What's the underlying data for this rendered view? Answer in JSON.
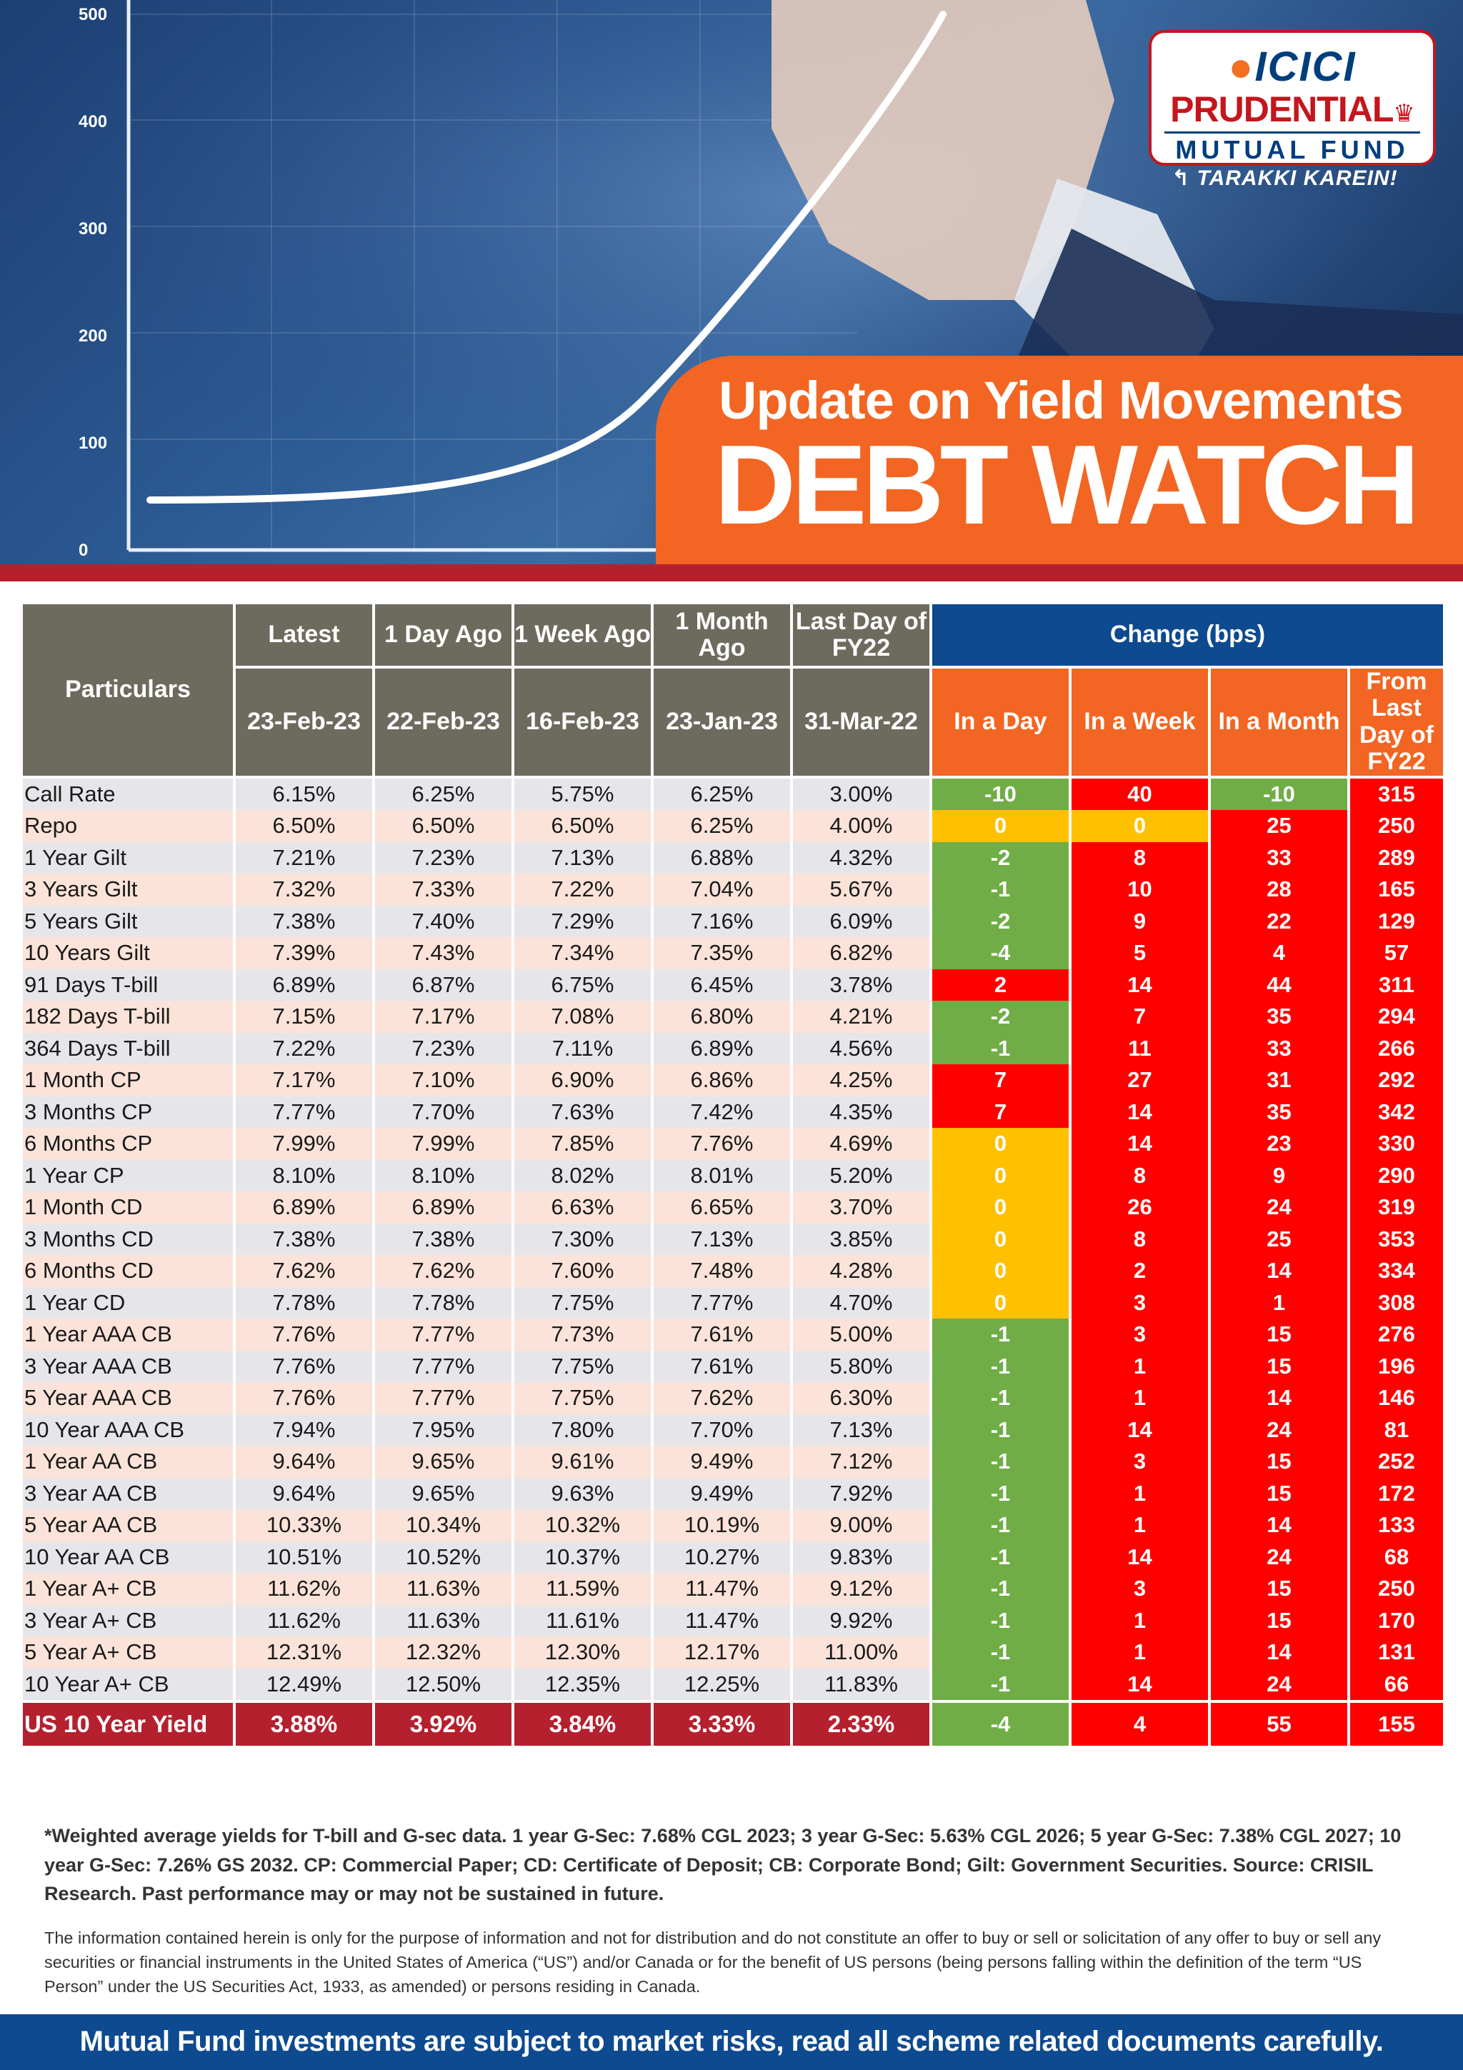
{
  "brand": {
    "name_line1": "ICICI",
    "name_line2": "PRUDENTIAL",
    "name_line3": "MUTUAL FUND",
    "tagline": "TARAKKI KAREIN!",
    "logo_icon": "lion-emblem-icon"
  },
  "hero": {
    "subtitle": "Update on Yield Movements",
    "title": "DEBT WATCH",
    "axis_ticks": [
      "500",
      "400",
      "300",
      "200",
      "100",
      "0"
    ],
    "colors": {
      "banner": "#f26522",
      "strip": "#b5202e",
      "background": "#1c3f73"
    }
  },
  "table": {
    "headers": {
      "particulars": "Particulars",
      "latest": "Latest",
      "one_day": "1 Day Ago",
      "one_week": "1 Week Ago",
      "one_month": "1 Month Ago",
      "last_fy": "Last Day of FY22",
      "change": "Change (bps)",
      "d_latest": "23-Feb-23",
      "d_day": "22-Feb-23",
      "d_week": "16-Feb-23",
      "d_month": "23-Jan-23",
      "d_fy": "31-Mar-22",
      "in_day": "In a Day",
      "in_week": "In a Week",
      "in_month": "In a Month",
      "from_fy": "From Last Day of FY22"
    },
    "rows": [
      {
        "name": "Call Rate",
        "values": [
          "6.15%",
          "6.25%",
          "5.75%",
          "6.25%",
          "3.00%"
        ],
        "changes": [
          "-10",
          "40",
          "-10",
          "315"
        ],
        "colors": [
          "green",
          "red",
          "green",
          "red"
        ]
      },
      {
        "name": "Repo",
        "values": [
          "6.50%",
          "6.50%",
          "6.50%",
          "6.25%",
          "4.00%"
        ],
        "changes": [
          "0",
          "0",
          "25",
          "250"
        ],
        "colors": [
          "amber",
          "amber",
          "red",
          "red"
        ]
      },
      {
        "name": "1 Year Gilt",
        "values": [
          "7.21%",
          "7.23%",
          "7.13%",
          "6.88%",
          "4.32%"
        ],
        "changes": [
          "-2",
          "8",
          "33",
          "289"
        ],
        "colors": [
          "green",
          "red",
          "red",
          "red"
        ]
      },
      {
        "name": "3 Years Gilt",
        "values": [
          "7.32%",
          "7.33%",
          "7.22%",
          "7.04%",
          "5.67%"
        ],
        "changes": [
          "-1",
          "10",
          "28",
          "165"
        ],
        "colors": [
          "green",
          "red",
          "red",
          "red"
        ]
      },
      {
        "name": "5 Years Gilt",
        "values": [
          "7.38%",
          "7.40%",
          "7.29%",
          "7.16%",
          "6.09%"
        ],
        "changes": [
          "-2",
          "9",
          "22",
          "129"
        ],
        "colors": [
          "green",
          "red",
          "red",
          "red"
        ]
      },
      {
        "name": "10 Years Gilt",
        "values": [
          "7.39%",
          "7.43%",
          "7.34%",
          "7.35%",
          "6.82%"
        ],
        "changes": [
          "-4",
          "5",
          "4",
          "57"
        ],
        "colors": [
          "green",
          "red",
          "red",
          "red"
        ]
      },
      {
        "name": "91 Days T-bill",
        "values": [
          "6.89%",
          "6.87%",
          "6.75%",
          "6.45%",
          "3.78%"
        ],
        "changes": [
          "2",
          "14",
          "44",
          "311"
        ],
        "colors": [
          "red",
          "red",
          "red",
          "red"
        ]
      },
      {
        "name": "182 Days T-bill",
        "values": [
          "7.15%",
          "7.17%",
          "7.08%",
          "6.80%",
          "4.21%"
        ],
        "changes": [
          "-2",
          "7",
          "35",
          "294"
        ],
        "colors": [
          "green",
          "red",
          "red",
          "red"
        ]
      },
      {
        "name": "364 Days T-bill",
        "values": [
          "7.22%",
          "7.23%",
          "7.11%",
          "6.89%",
          "4.56%"
        ],
        "changes": [
          "-1",
          "11",
          "33",
          "266"
        ],
        "colors": [
          "green",
          "red",
          "red",
          "red"
        ]
      },
      {
        "name": "1 Month CP",
        "values": [
          "7.17%",
          "7.10%",
          "6.90%",
          "6.86%",
          "4.25%"
        ],
        "changes": [
          "7",
          "27",
          "31",
          "292"
        ],
        "colors": [
          "red",
          "red",
          "red",
          "red"
        ]
      },
      {
        "name": "3 Months CP",
        "values": [
          "7.77%",
          "7.70%",
          "7.63%",
          "7.42%",
          "4.35%"
        ],
        "changes": [
          "7",
          "14",
          "35",
          "342"
        ],
        "colors": [
          "red",
          "red",
          "red",
          "red"
        ]
      },
      {
        "name": "6 Months CP",
        "values": [
          "7.99%",
          "7.99%",
          "7.85%",
          "7.76%",
          "4.69%"
        ],
        "changes": [
          "0",
          "14",
          "23",
          "330"
        ],
        "colors": [
          "amber",
          "red",
          "red",
          "red"
        ]
      },
      {
        "name": "1 Year CP",
        "values": [
          "8.10%",
          "8.10%",
          "8.02%",
          "8.01%",
          "5.20%"
        ],
        "changes": [
          "0",
          "8",
          "9",
          "290"
        ],
        "colors": [
          "amber",
          "red",
          "red",
          "red"
        ]
      },
      {
        "name": "1 Month CD",
        "values": [
          "6.89%",
          "6.89%",
          "6.63%",
          "6.65%",
          "3.70%"
        ],
        "changes": [
          "0",
          "26",
          "24",
          "319"
        ],
        "colors": [
          "amber",
          "red",
          "red",
          "red"
        ]
      },
      {
        "name": "3 Months CD",
        "values": [
          "7.38%",
          "7.38%",
          "7.30%",
          "7.13%",
          "3.85%"
        ],
        "changes": [
          "0",
          "8",
          "25",
          "353"
        ],
        "colors": [
          "amber",
          "red",
          "red",
          "red"
        ]
      },
      {
        "name": "6 Months CD",
        "values": [
          "7.62%",
          "7.62%",
          "7.60%",
          "7.48%",
          "4.28%"
        ],
        "changes": [
          "0",
          "2",
          "14",
          "334"
        ],
        "colors": [
          "amber",
          "red",
          "red",
          "red"
        ]
      },
      {
        "name": "1 Year CD",
        "values": [
          "7.78%",
          "7.78%",
          "7.75%",
          "7.77%",
          "4.70%"
        ],
        "changes": [
          "0",
          "3",
          "1",
          "308"
        ],
        "colors": [
          "amber",
          "red",
          "red",
          "red"
        ]
      },
      {
        "name": "1 Year AAA CB",
        "values": [
          "7.76%",
          "7.77%",
          "7.73%",
          "7.61%",
          "5.00%"
        ],
        "changes": [
          "-1",
          "3",
          "15",
          "276"
        ],
        "colors": [
          "green",
          "red",
          "red",
          "red"
        ]
      },
      {
        "name": "3 Year AAA CB",
        "values": [
          "7.76%",
          "7.77%",
          "7.75%",
          "7.61%",
          "5.80%"
        ],
        "changes": [
          "-1",
          "1",
          "15",
          "196"
        ],
        "colors": [
          "green",
          "red",
          "red",
          "red"
        ]
      },
      {
        "name": "5 Year AAA CB",
        "values": [
          "7.76%",
          "7.77%",
          "7.75%",
          "7.62%",
          "6.30%"
        ],
        "changes": [
          "-1",
          "1",
          "14",
          "146"
        ],
        "colors": [
          "green",
          "red",
          "red",
          "red"
        ]
      },
      {
        "name": "10 Year AAA CB",
        "values": [
          "7.94%",
          "7.95%",
          "7.80%",
          "7.70%",
          "7.13%"
        ],
        "changes": [
          "-1",
          "14",
          "24",
          "81"
        ],
        "colors": [
          "green",
          "red",
          "red",
          "red"
        ]
      },
      {
        "name": "1 Year AA CB",
        "values": [
          "9.64%",
          "9.65%",
          "9.61%",
          "9.49%",
          "7.12%"
        ],
        "changes": [
          "-1",
          "3",
          "15",
          "252"
        ],
        "colors": [
          "green",
          "red",
          "red",
          "red"
        ]
      },
      {
        "name": "3 Year AA CB",
        "values": [
          "9.64%",
          "9.65%",
          "9.63%",
          "9.49%",
          "7.92%"
        ],
        "changes": [
          "-1",
          "1",
          "15",
          "172"
        ],
        "colors": [
          "green",
          "red",
          "red",
          "red"
        ]
      },
      {
        "name": "5 Year AA CB",
        "values": [
          "10.33%",
          "10.34%",
          "10.32%",
          "10.19%",
          "9.00%"
        ],
        "changes": [
          "-1",
          "1",
          "14",
          "133"
        ],
        "colors": [
          "green",
          "red",
          "red",
          "red"
        ]
      },
      {
        "name": "10 Year AA CB",
        "values": [
          "10.51%",
          "10.52%",
          "10.37%",
          "10.27%",
          "9.83%"
        ],
        "changes": [
          "-1",
          "14",
          "24",
          "68"
        ],
        "colors": [
          "green",
          "red",
          "red",
          "red"
        ]
      },
      {
        "name": "1 Year A+ CB",
        "values": [
          "11.62%",
          "11.63%",
          "11.59%",
          "11.47%",
          "9.12%"
        ],
        "changes": [
          "-1",
          "3",
          "15",
          "250"
        ],
        "colors": [
          "green",
          "red",
          "red",
          "red"
        ]
      },
      {
        "name": "3 Year A+ CB",
        "values": [
          "11.62%",
          "11.63%",
          "11.61%",
          "11.47%",
          "9.92%"
        ],
        "changes": [
          "-1",
          "1",
          "15",
          "170"
        ],
        "colors": [
          "green",
          "red",
          "red",
          "red"
        ]
      },
      {
        "name": "5 Year A+ CB",
        "values": [
          "12.31%",
          "12.32%",
          "12.30%",
          "12.17%",
          "11.00%"
        ],
        "changes": [
          "-1",
          "1",
          "14",
          "131"
        ],
        "colors": [
          "green",
          "red",
          "red",
          "red"
        ]
      },
      {
        "name": "10 Year A+ CB",
        "values": [
          "12.49%",
          "12.50%",
          "12.35%",
          "12.25%",
          "11.83%"
        ],
        "changes": [
          "-1",
          "14",
          "24",
          "66"
        ],
        "colors": [
          "green",
          "red",
          "red",
          "red"
        ]
      }
    ],
    "us_row": {
      "name": "US 10 Year Yield",
      "values": [
        "3.88%",
        "3.92%",
        "3.84%",
        "3.33%",
        "2.33%"
      ],
      "changes": [
        "-4",
        "4",
        "55",
        "155"
      ],
      "colors": [
        "green",
        "red",
        "red",
        "red"
      ]
    },
    "cell_colors": {
      "green": "#70ad47",
      "amber": "#ffc000",
      "red": "#ff0000"
    }
  },
  "notes": {
    "bold": "*Weighted average yields for T-bill and G-sec data. 1 year G-Sec: 7.68% CGL 2023; 3 year G-Sec: 5.63% CGL 2026; 5 year G-Sec: 7.38% CGL 2027;  10 year G-Sec: 7.26% GS 2032. CP: Commercial Paper; CD: Certificate of Deposit; CB: Corporate Bond; Gilt: Government Securities. Source: CRISIL Research. Past performance may or may not be sustained in future.",
    "disclaimer": "The information contained herein is only for the purpose of information and not for distribution and do not constitute an offer to buy or sell or solicitation of any offer to buy or sell any securities or financial instruments in the United States of America (“US”) and/or Canada or for the benefit of US persons (being persons falling within the definition of the term “US Person” under the US Securities Act, 1933, as amended) or persons residing in Canada."
  },
  "footer": {
    "text": "Mutual Fund investments are subject to market risks, read all scheme related documents carefully."
  }
}
